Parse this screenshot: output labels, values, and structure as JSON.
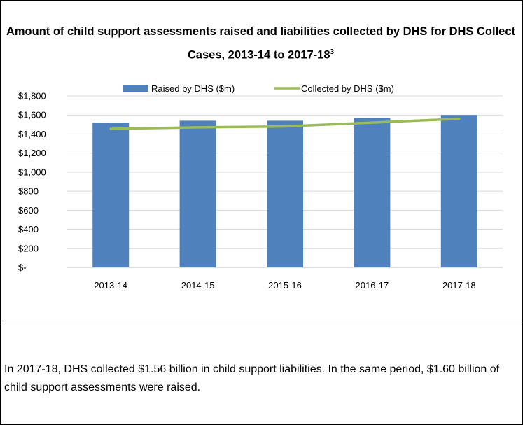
{
  "chart_data": {
    "type": "bar",
    "title_main": "Amount of child support assessments raised and liabilities collected by DHS for DHS Collect Cases, 2013-14 to 2017-18",
    "title_sup": "3",
    "categories": [
      "2013-14",
      "2014-15",
      "2015-16",
      "2016-17",
      "2017-18"
    ],
    "series": [
      {
        "name": "Raised by DHS ($m)",
        "type": "bar",
        "color": "#4f81bd",
        "values": [
          1520,
          1540,
          1540,
          1570,
          1600
        ]
      },
      {
        "name": "Collected by DHS ($m)",
        "type": "line",
        "color": "#9bbb59",
        "values": [
          1455,
          1470,
          1480,
          1520,
          1560
        ]
      }
    ],
    "ylim": [
      0,
      1800
    ],
    "yticks": [
      0,
      200,
      400,
      600,
      800,
      1000,
      1200,
      1400,
      1600,
      1800
    ],
    "ytick_labels": [
      "$-",
      "$200",
      "$400",
      "$600",
      "$800",
      "$1,000",
      "$1,200",
      "$1,400",
      "$1,600",
      "$1,800"
    ],
    "grid": true,
    "legend": "top-center"
  },
  "caption": "In 2017-18, DHS collected $1.56 billion in child support liabilities. In the same period, $1.60 billion of child support assessments were raised."
}
